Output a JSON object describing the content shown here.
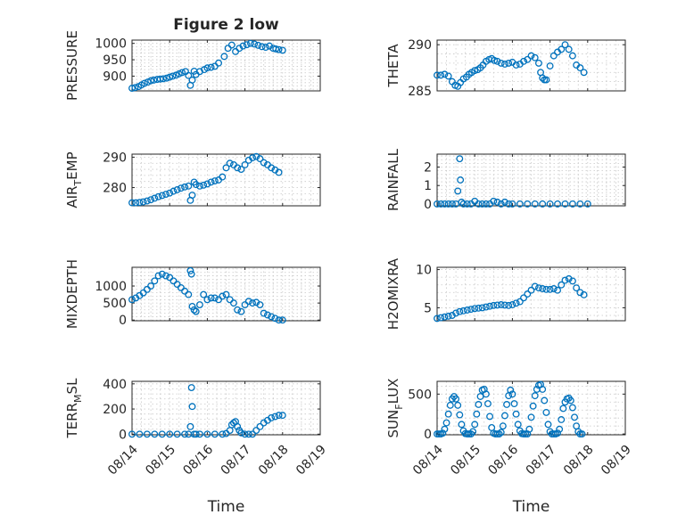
{
  "figure": {
    "title": "Figure 2 low",
    "xlabel": "Time",
    "xticklabels": [
      "08/14",
      "08/15",
      "08/16",
      "08/17",
      "08/18",
      "08/19"
    ],
    "marker_color": "#0072BD"
  },
  "chart_data": [
    {
      "type": "scatter",
      "title": "Figure 2 low",
      "ylabel": "PRESSURE",
      "ylim": [
        855,
        1010
      ],
      "yticks": [
        900,
        950,
        1000
      ],
      "xlim": [
        0,
        5
      ],
      "grid": true,
      "x": [
        0.0,
        0.08,
        0.17,
        0.25,
        0.33,
        0.42,
        0.5,
        0.58,
        0.67,
        0.75,
        0.83,
        0.92,
        1.0,
        1.08,
        1.17,
        1.25,
        1.33,
        1.42,
        1.5,
        1.55,
        1.6,
        1.65,
        1.7,
        1.8,
        1.92,
        2.0,
        2.1,
        2.2,
        2.3,
        2.45,
        2.55,
        2.65,
        2.75,
        2.85,
        2.95,
        3.05,
        3.15,
        3.25,
        3.35,
        3.45,
        3.55,
        3.65,
        3.75,
        3.82,
        3.9,
        4.0
      ],
      "y": [
        863,
        865,
        868,
        873,
        878,
        882,
        886,
        888,
        890,
        891,
        892,
        894,
        897,
        900,
        903,
        907,
        911,
        914,
        902,
        872,
        888,
        915,
        905,
        914,
        920,
        925,
        927,
        930,
        940,
        960,
        985,
        995,
        975,
        985,
        992,
        996,
        1000,
        998,
        994,
        990,
        988,
        992,
        985,
        983,
        981,
        979
      ]
    },
    {
      "type": "scatter",
      "ylabel": "THETA",
      "ylim": [
        285,
        290.5
      ],
      "yticks": [
        285,
        290
      ],
      "xlim": [
        0,
        5
      ],
      "grid": true,
      "x": [
        0.0,
        0.1,
        0.2,
        0.3,
        0.4,
        0.48,
        0.55,
        0.62,
        0.7,
        0.78,
        0.85,
        0.92,
        1.0,
        1.08,
        1.15,
        1.22,
        1.3,
        1.38,
        1.45,
        1.52,
        1.6,
        1.7,
        1.8,
        1.9,
        2.0,
        2.1,
        2.2,
        2.3,
        2.4,
        2.5,
        2.6,
        2.7,
        2.75,
        2.8,
        2.85,
        2.9,
        3.0,
        3.1,
        3.2,
        3.3,
        3.4,
        3.5,
        3.6,
        3.7,
        3.8,
        3.9
      ],
      "y": [
        286.7,
        286.7,
        286.8,
        286.6,
        286.0,
        285.6,
        285.5,
        285.9,
        286.3,
        286.5,
        286.8,
        287.0,
        287.2,
        287.3,
        287.5,
        287.8,
        288.2,
        288.4,
        288.5,
        288.3,
        288.2,
        288.0,
        287.9,
        288.0,
        288.1,
        287.8,
        287.9,
        288.2,
        288.4,
        288.8,
        288.6,
        288.0,
        287.0,
        286.4,
        286.2,
        286.2,
        287.7,
        288.8,
        289.2,
        289.5,
        290.0,
        289.5,
        288.8,
        287.8,
        287.5,
        287.0
      ]
    },
    {
      "type": "scatter",
      "ylabel": "AIR_TEMP",
      "ylim": [
        274,
        291
      ],
      "yticks": [
        280,
        290
      ],
      "xlim": [
        0,
        5
      ],
      "grid": true,
      "x": [
        0.0,
        0.1,
        0.2,
        0.3,
        0.4,
        0.5,
        0.6,
        0.7,
        0.8,
        0.9,
        1.0,
        1.1,
        1.2,
        1.3,
        1.4,
        1.5,
        1.55,
        1.6,
        1.65,
        1.7,
        1.8,
        1.9,
        2.0,
        2.1,
        2.2,
        2.3,
        2.4,
        2.5,
        2.6,
        2.7,
        2.8,
        2.9,
        3.0,
        3.1,
        3.2,
        3.3,
        3.4,
        3.5,
        3.6,
        3.7,
        3.8,
        3.9
      ],
      "y": [
        275.0,
        275.0,
        275.1,
        275.3,
        275.6,
        276.0,
        276.5,
        277.0,
        277.4,
        277.8,
        278.2,
        278.8,
        279.3,
        279.8,
        280.2,
        280.5,
        275.8,
        277.5,
        281.8,
        281.0,
        280.5,
        280.8,
        281.2,
        281.8,
        282.2,
        282.5,
        283.5,
        286.5,
        288.0,
        287.5,
        286.5,
        286.0,
        287.5,
        289.0,
        289.8,
        290.2,
        289.5,
        288.2,
        287.5,
        286.5,
        285.8,
        285.0
      ]
    },
    {
      "type": "scatter",
      "ylabel": "RAINFALL",
      "ylim": [
        -0.1,
        2.7
      ],
      "yticks": [
        0,
        1,
        2
      ],
      "xlim": [
        0,
        5
      ],
      "grid": true,
      "x": [
        0.0,
        0.1,
        0.2,
        0.3,
        0.4,
        0.5,
        0.55,
        0.6,
        0.62,
        0.65,
        0.7,
        0.8,
        0.9,
        1.0,
        1.1,
        1.2,
        1.3,
        1.4,
        1.5,
        1.6,
        1.7,
        1.8,
        1.9,
        2.0,
        2.2,
        2.4,
        2.6,
        2.8,
        3.0,
        3.2,
        3.4,
        3.6,
        3.8,
        4.0
      ],
      "y": [
        0,
        0,
        0,
        0,
        0,
        0,
        0.7,
        2.45,
        1.3,
        0.1,
        0,
        0,
        0,
        0.15,
        0,
        0,
        0,
        0,
        0.15,
        0.1,
        0,
        0.1,
        0,
        0,
        0,
        0,
        0,
        0,
        0,
        0,
        0,
        0,
        0,
        0
      ]
    },
    {
      "type": "scatter",
      "ylabel": "MIXDEPTH",
      "ylim": [
        -20,
        1550
      ],
      "yticks": [
        0,
        500,
        1000
      ],
      "xlim": [
        0,
        5
      ],
      "grid": true,
      "x": [
        0.0,
        0.1,
        0.2,
        0.3,
        0.4,
        0.5,
        0.6,
        0.7,
        0.8,
        0.9,
        1.0,
        1.1,
        1.2,
        1.3,
        1.4,
        1.5,
        1.55,
        1.58,
        1.6,
        1.65,
        1.7,
        1.8,
        1.9,
        2.0,
        2.1,
        2.2,
        2.3,
        2.4,
        2.5,
        2.6,
        2.7,
        2.8,
        2.9,
        3.0,
        3.1,
        3.2,
        3.3,
        3.4,
        3.5,
        3.6,
        3.7,
        3.8,
        3.9,
        4.0
      ],
      "y": [
        600,
        650,
        720,
        800,
        900,
        1000,
        1150,
        1300,
        1350,
        1300,
        1250,
        1150,
        1050,
        950,
        850,
        750,
        1450,
        1350,
        400,
        300,
        250,
        450,
        750,
        600,
        650,
        650,
        600,
        700,
        750,
        600,
        500,
        300,
        250,
        450,
        550,
        500,
        520,
        450,
        200,
        150,
        100,
        50,
        0,
        0
      ]
    },
    {
      "type": "scatter",
      "ylabel": "H2OMIXRA",
      "ylim": [
        3.3,
        10.3
      ],
      "yticks": [
        5,
        10
      ],
      "xlim": [
        0,
        5
      ],
      "grid": true,
      "x": [
        0.0,
        0.1,
        0.2,
        0.3,
        0.4,
        0.5,
        0.6,
        0.7,
        0.8,
        0.9,
        1.0,
        1.1,
        1.2,
        1.3,
        1.4,
        1.5,
        1.6,
        1.7,
        1.8,
        1.9,
        2.0,
        2.1,
        2.2,
        2.3,
        2.4,
        2.5,
        2.6,
        2.7,
        2.8,
        2.9,
        3.0,
        3.1,
        3.2,
        3.3,
        3.4,
        3.5,
        3.6,
        3.7,
        3.8,
        3.9
      ],
      "y": [
        3.6,
        3.7,
        3.8,
        3.9,
        4.0,
        4.3,
        4.5,
        4.6,
        4.7,
        4.8,
        4.9,
        4.95,
        5.0,
        5.1,
        5.2,
        5.3,
        5.35,
        5.4,
        5.35,
        5.3,
        5.4,
        5.6,
        5.8,
        6.3,
        6.8,
        7.3,
        7.8,
        7.6,
        7.5,
        7.4,
        7.4,
        7.5,
        7.3,
        8.0,
        8.6,
        8.8,
        8.5,
        7.6,
        7.0,
        6.7
      ]
    },
    {
      "type": "scatter",
      "ylabel": "TERR_MSL",
      "ylim": [
        -5,
        420
      ],
      "yticks": [
        0,
        200,
        400
      ],
      "xlim": [
        0,
        5
      ],
      "grid": true,
      "x": [
        0.0,
        0.2,
        0.4,
        0.6,
        0.8,
        1.0,
        1.2,
        1.4,
        1.5,
        1.55,
        1.58,
        1.6,
        1.65,
        1.7,
        1.8,
        2.0,
        2.2,
        2.4,
        2.5,
        2.6,
        2.65,
        2.7,
        2.75,
        2.8,
        2.85,
        2.9,
        3.0,
        3.1,
        3.2,
        3.3,
        3.4,
        3.5,
        3.6,
        3.7,
        3.8,
        3.9,
        4.0
      ],
      "y": [
        0,
        0,
        0,
        0,
        0,
        0,
        0,
        0,
        0,
        60,
        370,
        220,
        0,
        0,
        0,
        0,
        0,
        0,
        5,
        30,
        75,
        90,
        100,
        60,
        30,
        10,
        0,
        0,
        0,
        30,
        60,
        90,
        110,
        130,
        140,
        150,
        150
      ]
    },
    {
      "type": "scatter",
      "ylabel": "SUN_FLUX",
      "ylim": [
        -10,
        660
      ],
      "yticks": [
        0,
        500
      ],
      "xlim": [
        0,
        5
      ],
      "grid": true,
      "x": [
        0.0,
        0.05,
        0.1,
        0.15,
        0.2,
        0.25,
        0.3,
        0.35,
        0.4,
        0.45,
        0.5,
        0.55,
        0.6,
        0.65,
        0.7,
        0.75,
        0.8,
        0.85,
        0.9,
        0.95,
        1.0,
        1.05,
        1.1,
        1.15,
        1.2,
        1.25,
        1.3,
        1.35,
        1.4,
        1.45,
        1.5,
        1.55,
        1.6,
        1.65,
        1.7,
        1.75,
        1.8,
        1.85,
        1.9,
        1.95,
        2.0,
        2.05,
        2.1,
        2.15,
        2.2,
        2.25,
        2.3,
        2.35,
        2.4,
        2.45,
        2.5,
        2.55,
        2.6,
        2.65,
        2.7,
        2.75,
        2.8,
        2.85,
        2.9,
        2.95,
        3.0,
        3.05,
        3.1,
        3.15,
        3.2,
        3.25,
        3.3,
        3.35,
        3.4,
        3.45,
        3.5,
        3.55,
        3.6,
        3.65,
        3.7,
        3.75,
        3.8,
        3.85
      ],
      "y": [
        0,
        0,
        0,
        10,
        60,
        140,
        250,
        360,
        440,
        470,
        440,
        360,
        240,
        120,
        40,
        5,
        0,
        0,
        0,
        30,
        120,
        250,
        370,
        470,
        550,
        560,
        500,
        380,
        220,
        80,
        10,
        0,
        0,
        0,
        20,
        100,
        230,
        370,
        480,
        550,
        500,
        380,
        250,
        120,
        40,
        5,
        0,
        0,
        0,
        60,
        210,
        350,
        480,
        560,
        610,
        620,
        560,
        420,
        270,
        120,
        30,
        0,
        0,
        0,
        10,
        60,
        180,
        320,
        400,
        440,
        450,
        420,
        330,
        210,
        100,
        30,
        0,
        0
      ]
    }
  ]
}
